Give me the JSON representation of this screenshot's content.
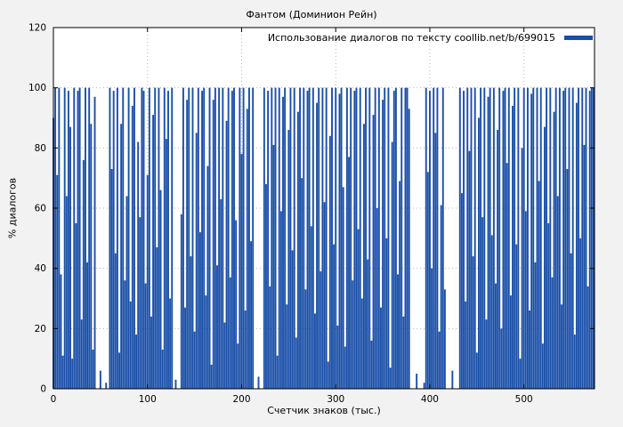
{
  "page": {
    "background": "#f2f2f2",
    "plot_background": "#ffffff"
  },
  "chart_data": {
    "type": "bar",
    "title": "Фантом (Доминион Рейн)",
    "legend": "Использование диалогов по тексту coollib.net/b/699015",
    "xlabel": "Счетчик знаков (тыс.)",
    "ylabel": "% диалогов",
    "xlim": [
      0,
      575
    ],
    "ylim": [
      0,
      120
    ],
    "x_ticks": [
      0,
      100,
      200,
      300,
      400,
      500
    ],
    "y_ticks": [
      0,
      20,
      40,
      60,
      80,
      100,
      120
    ],
    "grid": true,
    "legend_position": "top-right",
    "bar_color": "#1a4fa8",
    "x_step": 2,
    "values": [
      90,
      100,
      71,
      100,
      38,
      11,
      100,
      64,
      99,
      87,
      10,
      100,
      55,
      99,
      100,
      23,
      76,
      100,
      42,
      100,
      88,
      13,
      97,
      0,
      0,
      6,
      0,
      0,
      2,
      0,
      100,
      73,
      99,
      45,
      100,
      12,
      88,
      100,
      36,
      64,
      100,
      29,
      94,
      100,
      18,
      82,
      57,
      100,
      99,
      35,
      71,
      100,
      24,
      91,
      100,
      47,
      100,
      66,
      13,
      100,
      83,
      99,
      30,
      100,
      0,
      3,
      0,
      0,
      58,
      100,
      27,
      96,
      100,
      44,
      100,
      19,
      85,
      100,
      52,
      99,
      100,
      31,
      74,
      100,
      8,
      96,
      100,
      41,
      100,
      63,
      100,
      22,
      89,
      100,
      37,
      99,
      100,
      56,
      15,
      100,
      78,
      100,
      26,
      93,
      100,
      49,
      100,
      0,
      0,
      4,
      0,
      0,
      100,
      68,
      99,
      34,
      100,
      81,
      100,
      11,
      100,
      59,
      97,
      100,
      28,
      86,
      100,
      46,
      100,
      17,
      92,
      100,
      70,
      100,
      33,
      99,
      100,
      54,
      100,
      25,
      95,
      100,
      39,
      100,
      62,
      100,
      9,
      84,
      100,
      48,
      100,
      21,
      98,
      100,
      67,
      14,
      100,
      77,
      100,
      36,
      99,
      100,
      53,
      100,
      30,
      88,
      100,
      43,
      100,
      16,
      91,
      100,
      60,
      100,
      27,
      96,
      100,
      50,
      100,
      7,
      82,
      99,
      100,
      38,
      69,
      100,
      24,
      100,
      100,
      93,
      0,
      0,
      0,
      5,
      0,
      0,
      0,
      2,
      100,
      72,
      99,
      40,
      100,
      85,
      100,
      19,
      61,
      100,
      33,
      0,
      0,
      0,
      6,
      0,
      0,
      0,
      100,
      65,
      99,
      29,
      100,
      79,
      100,
      44,
      100,
      12,
      90,
      100,
      57,
      100,
      23,
      97,
      100,
      51,
      100,
      35,
      86,
      100,
      20,
      99,
      100,
      75,
      100,
      31,
      94,
      100,
      48,
      100,
      10,
      80,
      100,
      59,
      100,
      26,
      98,
      100,
      42,
      100,
      69,
      100,
      15,
      87,
      100,
      55,
      100,
      37,
      92,
      100,
      64,
      100,
      28,
      99,
      100,
      73,
      100,
      45,
      100,
      18,
      95,
      100,
      50,
      100,
      81,
      100,
      34,
      99,
      100,
      100
    ]
  }
}
